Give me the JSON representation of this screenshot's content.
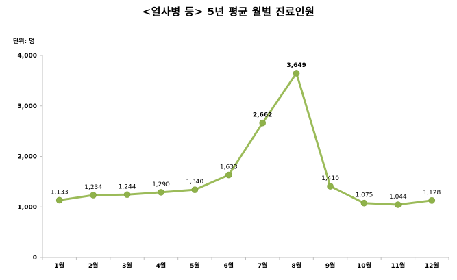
{
  "title": "<열사병 등> 5년 평균 월별 진료인원",
  "unit_label": "단위: 명",
  "chart_data": {
    "type": "line",
    "title": "<열사병 등> 5년 평균 월별 진료인원",
    "xlabel": "",
    "ylabel": "",
    "unit": "단위: 명",
    "categories": [
      "1월",
      "2월",
      "3월",
      "4월",
      "5월",
      "6월",
      "7월",
      "8월",
      "9월",
      "10월",
      "11월",
      "12월"
    ],
    "values": [
      1133,
      1234,
      1244,
      1290,
      1340,
      1633,
      2662,
      3649,
      1410,
      1075,
      1044,
      1128
    ],
    "value_labels": [
      "1,133",
      "1,234",
      "1,244",
      "1,290",
      "1,340",
      "1,633",
      "2,662",
      "3,649",
      "1,410",
      "1,075",
      "1,044",
      "1,128"
    ],
    "ylim": [
      0,
      4000
    ],
    "yticks": [
      0,
      1000,
      2000,
      3000,
      4000
    ],
    "ytick_labels": [
      "0",
      "1,000",
      "2,000",
      "3,000",
      "4,000"
    ],
    "grid": false,
    "legend": "none",
    "colors": {
      "line": "#9bbb59",
      "marker": "#8fb24a",
      "axis": "#bfbfbf"
    }
  }
}
